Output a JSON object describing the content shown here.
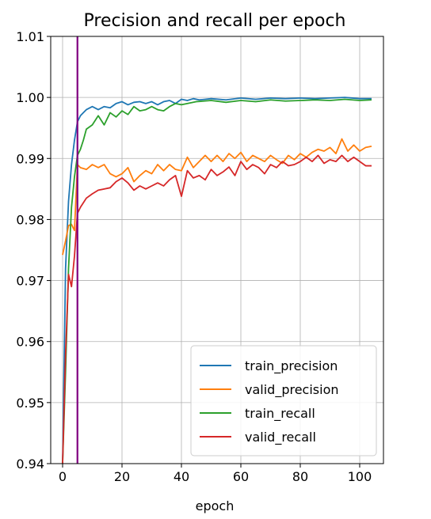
{
  "chart_data": {
    "type": "line",
    "title": "Precision and recall per epoch",
    "xlabel": "epoch",
    "ylabel": "",
    "xlim": [
      -4,
      108
    ],
    "ylim": [
      0.94,
      1.01
    ],
    "xticks": [
      0,
      20,
      40,
      60,
      80,
      100
    ],
    "yticks": [
      0.94,
      0.95,
      0.96,
      0.97,
      0.98,
      0.99,
      1.0,
      1.01
    ],
    "ytick_labels": [
      "0.94",
      "0.95",
      "0.96",
      "0.97",
      "0.98",
      "0.99",
      "1.00",
      "1.01"
    ],
    "grid": true,
    "legend_position": "lower-right",
    "vline": {
      "x": 5,
      "color": "#800080"
    },
    "series": [
      {
        "name": "train_precision",
        "color": "#1f77b4",
        "x": [
          0,
          1,
          2,
          3,
          4,
          5,
          6,
          7,
          8,
          10,
          12,
          14,
          16,
          18,
          20,
          22,
          24,
          26,
          28,
          30,
          32,
          34,
          36,
          38,
          40,
          42,
          44,
          46,
          48,
          50,
          55,
          60,
          65,
          70,
          75,
          80,
          85,
          90,
          95,
          100,
          104
        ],
        "y": [
          0.94,
          0.972,
          0.983,
          0.989,
          0.993,
          0.996,
          0.997,
          0.9975,
          0.998,
          0.9985,
          0.998,
          0.9985,
          0.9983,
          0.999,
          0.9993,
          0.9988,
          0.9992,
          0.9993,
          0.999,
          0.9993,
          0.9988,
          0.9993,
          0.9995,
          0.999,
          0.9997,
          0.9995,
          0.9998,
          0.9996,
          0.9997,
          0.9998,
          0.9996,
          0.9999,
          0.9997,
          0.9999,
          0.9998,
          0.9999,
          0.9998,
          0.9999,
          1.0,
          0.9998,
          0.9998
        ]
      },
      {
        "name": "valid_precision",
        "color": "#ff7f0e",
        "x": [
          0,
          1,
          2,
          3,
          4,
          5,
          6,
          8,
          10,
          12,
          14,
          16,
          18,
          20,
          22,
          24,
          26,
          28,
          30,
          32,
          34,
          36,
          38,
          40,
          42,
          44,
          46,
          48,
          50,
          52,
          54,
          56,
          58,
          60,
          62,
          64,
          66,
          68,
          70,
          72,
          74,
          76,
          78,
          80,
          82,
          84,
          86,
          88,
          90,
          92,
          94,
          96,
          98,
          100,
          102,
          104
        ],
        "y": [
          0.9742,
          0.9765,
          0.979,
          0.9792,
          0.9782,
          0.989,
          0.9885,
          0.9882,
          0.989,
          0.9885,
          0.989,
          0.9875,
          0.987,
          0.9875,
          0.9885,
          0.9862,
          0.9872,
          0.988,
          0.9875,
          0.989,
          0.988,
          0.989,
          0.9882,
          0.988,
          0.9902,
          0.9885,
          0.9895,
          0.9905,
          0.9895,
          0.9905,
          0.9895,
          0.9908,
          0.99,
          0.991,
          0.9895,
          0.9905,
          0.99,
          0.9895,
          0.9905,
          0.9898,
          0.9892,
          0.9905,
          0.9898,
          0.9908,
          0.9902,
          0.991,
          0.9915,
          0.9912,
          0.9918,
          0.9908,
          0.9932,
          0.9912,
          0.9922,
          0.9912,
          0.9918,
          0.992
        ]
      },
      {
        "name": "train_recall",
        "color": "#2ca02c",
        "x": [
          0,
          1,
          2,
          3,
          4,
          5,
          6,
          7,
          8,
          10,
          12,
          14,
          16,
          18,
          20,
          22,
          24,
          26,
          28,
          30,
          32,
          34,
          36,
          38,
          40,
          45,
          50,
          55,
          60,
          65,
          70,
          75,
          80,
          85,
          90,
          95,
          100,
          104
        ],
        "y": [
          0.94,
          0.955,
          0.972,
          0.982,
          0.987,
          0.9905,
          0.9915,
          0.993,
          0.9948,
          0.9955,
          0.997,
          0.9955,
          0.9975,
          0.9968,
          0.9978,
          0.9972,
          0.9985,
          0.9978,
          0.998,
          0.9985,
          0.998,
          0.9978,
          0.9985,
          0.999,
          0.9988,
          0.9993,
          0.9995,
          0.9992,
          0.9995,
          0.9993,
          0.9996,
          0.9994,
          0.9995,
          0.9996,
          0.9995,
          0.9997,
          0.9995,
          0.9996
        ]
      },
      {
        "name": "valid_recall",
        "color": "#d62728",
        "x": [
          0,
          1,
          2,
          3,
          4,
          5,
          6,
          8,
          10,
          12,
          14,
          16,
          18,
          20,
          22,
          24,
          26,
          28,
          30,
          32,
          34,
          36,
          38,
          40,
          42,
          44,
          46,
          48,
          50,
          52,
          54,
          56,
          58,
          60,
          62,
          64,
          66,
          68,
          70,
          72,
          74,
          76,
          78,
          80,
          82,
          84,
          86,
          88,
          90,
          92,
          94,
          96,
          98,
          100,
          102,
          104
        ],
        "y": [
          0.94,
          0.958,
          0.971,
          0.969,
          0.974,
          0.981,
          0.982,
          0.9835,
          0.9842,
          0.9848,
          0.985,
          0.9852,
          0.9862,
          0.9868,
          0.986,
          0.9848,
          0.9855,
          0.985,
          0.9855,
          0.986,
          0.9855,
          0.9865,
          0.9872,
          0.9838,
          0.988,
          0.9868,
          0.9872,
          0.9865,
          0.9882,
          0.9872,
          0.9878,
          0.9886,
          0.9872,
          0.9895,
          0.9882,
          0.989,
          0.9885,
          0.9875,
          0.989,
          0.9885,
          0.9895,
          0.9888,
          0.989,
          0.9895,
          0.9902,
          0.9895,
          0.9905,
          0.9892,
          0.9898,
          0.9895,
          0.9905,
          0.9895,
          0.9902,
          0.9895,
          0.9888,
          0.9888
        ]
      }
    ]
  }
}
